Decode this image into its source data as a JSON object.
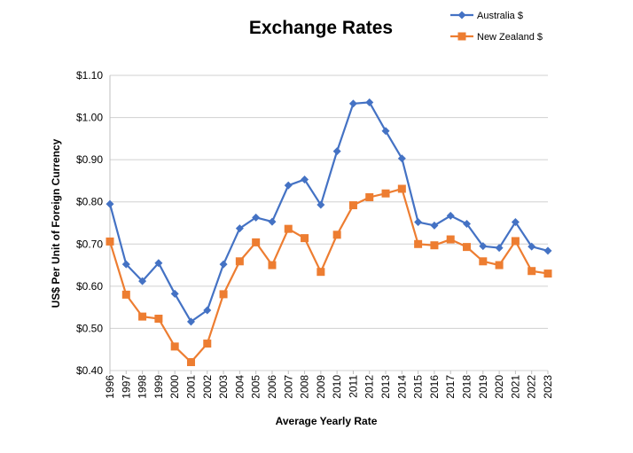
{
  "chart_data": {
    "type": "line",
    "title": "Exchange Rates",
    "xlabel": "Average Yearly Rate",
    "ylabel": "US$ Per Unit of Foreign Currency",
    "ylim": [
      0.4,
      1.1
    ],
    "yticks": [
      "$0.40",
      "$0.50",
      "$0.60",
      "$0.70",
      "$0.80",
      "$0.90",
      "$1.00",
      "$1.10"
    ],
    "grid": true,
    "legend_position": "top-right",
    "categories": [
      "1996",
      "1997",
      "1998",
      "1999",
      "2000",
      "2001",
      "2002",
      "2003",
      "2004",
      "2005",
      "2006",
      "2007",
      "2008",
      "2009",
      "2010",
      "2011",
      "2012",
      "2013",
      "2014",
      "2015",
      "2016",
      "2017",
      "2018",
      "2019",
      "2020",
      "2021",
      "2022",
      "2023"
    ],
    "series": [
      {
        "name": "Australia $",
        "color": "#4472C4",
        "marker": "diamond",
        "values": [
          0.795,
          0.652,
          0.612,
          0.655,
          0.582,
          0.516,
          0.543,
          0.652,
          0.737,
          0.763,
          0.753,
          0.839,
          0.853,
          0.793,
          0.92,
          1.033,
          1.036,
          0.968,
          0.903,
          0.752,
          0.744,
          0.767,
          0.748,
          0.695,
          0.691,
          0.752,
          0.694,
          0.684
        ]
      },
      {
        "name": "New Zealand $",
        "color": "#ED7D31",
        "marker": "square",
        "values": [
          0.706,
          0.58,
          0.528,
          0.523,
          0.457,
          0.42,
          0.464,
          0.581,
          0.659,
          0.704,
          0.65,
          0.736,
          0.714,
          0.634,
          0.722,
          0.792,
          0.811,
          0.82,
          0.831,
          0.7,
          0.697,
          0.711,
          0.693,
          0.659,
          0.65,
          0.707,
          0.636,
          0.63
        ]
      }
    ]
  }
}
